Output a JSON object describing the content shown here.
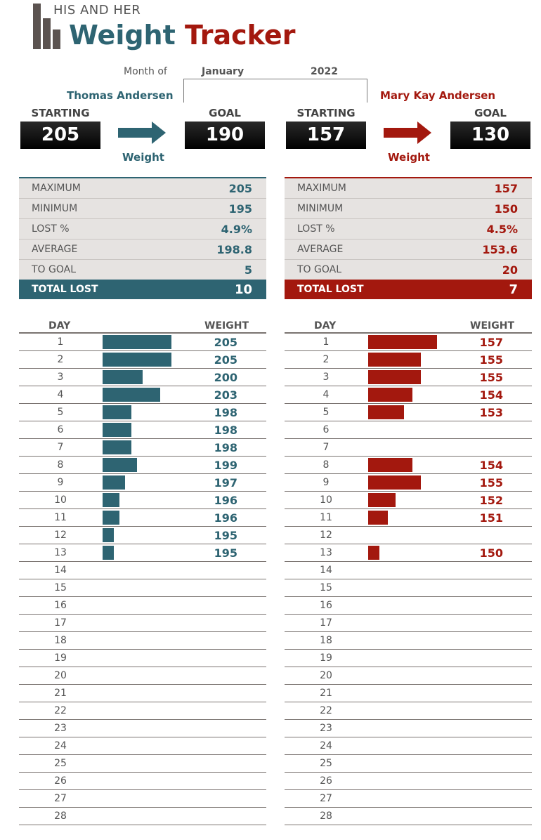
{
  "header": {
    "subtitle": "HIS AND HER",
    "title_part1": "Weight",
    "title_part2": "Tracker",
    "month_label": "Month of",
    "month": "January",
    "year": "2022"
  },
  "colors": {
    "his": "#2e6472",
    "her": "#a3180e"
  },
  "his": {
    "name": "Thomas Andersen",
    "starting_label": "STARTING",
    "starting": "205",
    "goal_label": "GOAL",
    "goal": "190",
    "arrow_label": "Weight",
    "stats": [
      {
        "label": "MAXIMUM",
        "value": "205"
      },
      {
        "label": "MINIMUM",
        "value": "195"
      },
      {
        "label": "LOST %",
        "value": "4.9%"
      },
      {
        "label": "AVERAGE",
        "value": "198.8"
      },
      {
        "label": "TO GOAL",
        "value": "5"
      }
    ],
    "total_label": "TOTAL LOST",
    "total": "10",
    "table": {
      "day_header": "DAY",
      "weight_header": "WEIGHT",
      "rows": [
        {
          "day": "1",
          "weight": 205
        },
        {
          "day": "2",
          "weight": 205
        },
        {
          "day": "3",
          "weight": 200
        },
        {
          "day": "4",
          "weight": 203
        },
        {
          "day": "5",
          "weight": 198
        },
        {
          "day": "6",
          "weight": 198
        },
        {
          "day": "7",
          "weight": 198
        },
        {
          "day": "8",
          "weight": 199
        },
        {
          "day": "9",
          "weight": 197
        },
        {
          "day": "10",
          "weight": 196
        },
        {
          "day": "11",
          "weight": 196
        },
        {
          "day": "12",
          "weight": 195
        },
        {
          "day": "13",
          "weight": 195
        },
        {
          "day": "14",
          "weight": null
        },
        {
          "day": "15",
          "weight": null
        },
        {
          "day": "16",
          "weight": null
        },
        {
          "day": "17",
          "weight": null
        },
        {
          "day": "18",
          "weight": null
        },
        {
          "day": "19",
          "weight": null
        },
        {
          "day": "20",
          "weight": null
        },
        {
          "day": "21",
          "weight": null
        },
        {
          "day": "22",
          "weight": null
        },
        {
          "day": "23",
          "weight": null
        },
        {
          "day": "24",
          "weight": null
        },
        {
          "day": "25",
          "weight": null
        },
        {
          "day": "26",
          "weight": null
        },
        {
          "day": "27",
          "weight": null
        },
        {
          "day": "28",
          "weight": null
        }
      ]
    }
  },
  "her": {
    "name": "Mary Kay Andersen",
    "starting_label": "STARTING",
    "starting": "157",
    "goal_label": "GOAL",
    "goal": "130",
    "arrow_label": "Weight",
    "stats": [
      {
        "label": "MAXIMUM",
        "value": "157"
      },
      {
        "label": "MINIMUM",
        "value": "150"
      },
      {
        "label": "LOST %",
        "value": "4.5%"
      },
      {
        "label": "AVERAGE",
        "value": "153.6"
      },
      {
        "label": "TO GOAL",
        "value": "20"
      }
    ],
    "total_label": "TOTAL LOST",
    "total": "7",
    "table": {
      "day_header": "DAY",
      "weight_header": "WEIGHT",
      "rows": [
        {
          "day": "1",
          "weight": 157
        },
        {
          "day": "2",
          "weight": 155
        },
        {
          "day": "3",
          "weight": 155
        },
        {
          "day": "4",
          "weight": 154
        },
        {
          "day": "5",
          "weight": 153
        },
        {
          "day": "6",
          "weight": null
        },
        {
          "day": "7",
          "weight": null
        },
        {
          "day": "8",
          "weight": 154
        },
        {
          "day": "9",
          "weight": 155
        },
        {
          "day": "10",
          "weight": 152
        },
        {
          "day": "11",
          "weight": 151
        },
        {
          "day": "12",
          "weight": null
        },
        {
          "day": "13",
          "weight": 150
        },
        {
          "day": "14",
          "weight": null
        },
        {
          "day": "15",
          "weight": null
        },
        {
          "day": "16",
          "weight": null
        },
        {
          "day": "17",
          "weight": null
        },
        {
          "day": "18",
          "weight": null
        },
        {
          "day": "19",
          "weight": null
        },
        {
          "day": "20",
          "weight": null
        },
        {
          "day": "21",
          "weight": null
        },
        {
          "day": "22",
          "weight": null
        },
        {
          "day": "23",
          "weight": null
        },
        {
          "day": "24",
          "weight": null
        },
        {
          "day": "25",
          "weight": null
        },
        {
          "day": "26",
          "weight": null
        },
        {
          "day": "27",
          "weight": null
        },
        {
          "day": "28",
          "weight": null
        }
      ]
    }
  }
}
